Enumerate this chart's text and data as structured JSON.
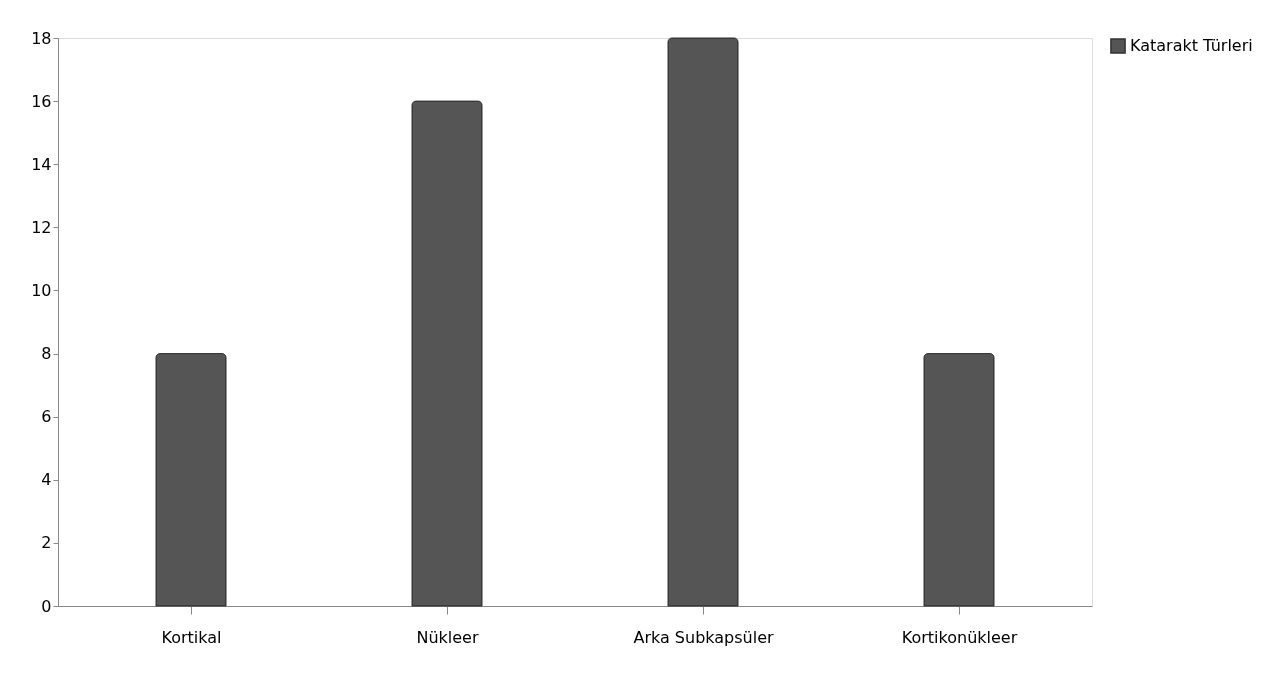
{
  "chart_data": {
    "type": "bar",
    "categories": [
      "Kortikal",
      "Nükleer",
      "Arka Subkapsüler",
      "Kortikonükleer"
    ],
    "series": [
      {
        "name": "Katarakt Türleri",
        "color": "#555555",
        "values": [
          8,
          16,
          18,
          8
        ]
      }
    ],
    "ylim": [
      0,
      18
    ],
    "yticks": [
      0,
      2,
      4,
      6,
      8,
      10,
      12,
      14,
      16,
      18
    ],
    "grid": false,
    "legend": "right"
  }
}
